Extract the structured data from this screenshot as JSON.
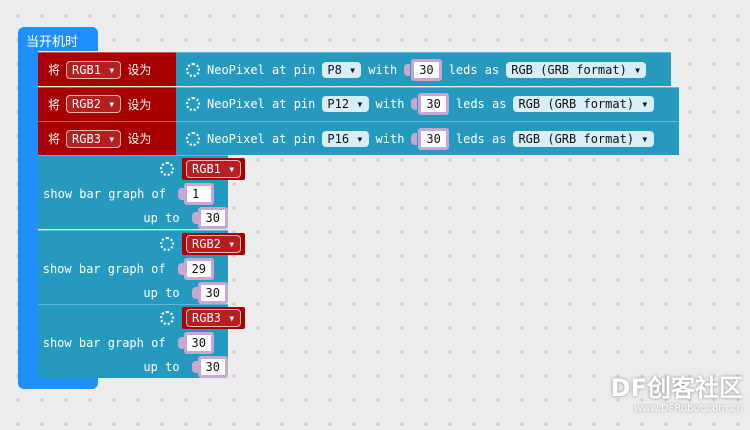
{
  "event": "当开机时",
  "set_blocks": [
    {
      "set": "将",
      "var": "RGB1",
      "to": "设为",
      "neopixel": "NeoPixel at pin",
      "pin": "P8",
      "with": "with",
      "leds": 30,
      "leds_as": "leds as",
      "format": "RGB (GRB format)"
    },
    {
      "set": "将",
      "var": "RGB2",
      "to": "设为",
      "neopixel": "NeoPixel at pin",
      "pin": "P12",
      "with": "with",
      "leds": 30,
      "leds_as": "leds as",
      "format": "RGB (GRB format)"
    },
    {
      "set": "将",
      "var": "RGB3",
      "to": "设为",
      "neopixel": "NeoPixel at pin",
      "pin": "P16",
      "with": "with",
      "leds": 30,
      "leds_as": "leds as",
      "format": "RGB (GRB format)"
    }
  ],
  "bar_graphs": [
    {
      "var": "RGB1",
      "label": "show bar graph of",
      "value": 1,
      "up_to_label": "up to",
      "up_to": 30
    },
    {
      "var": "RGB2",
      "label": "show bar graph of",
      "value": 29,
      "up_to_label": "up to",
      "up_to": 30
    },
    {
      "var": "RGB3",
      "label": "show bar graph of",
      "value": 30,
      "up_to_label": "up to",
      "up_to": 30
    }
  ],
  "watermark": {
    "logo": "DF创客社区",
    "url": "www.DFRobot.com.cn"
  }
}
